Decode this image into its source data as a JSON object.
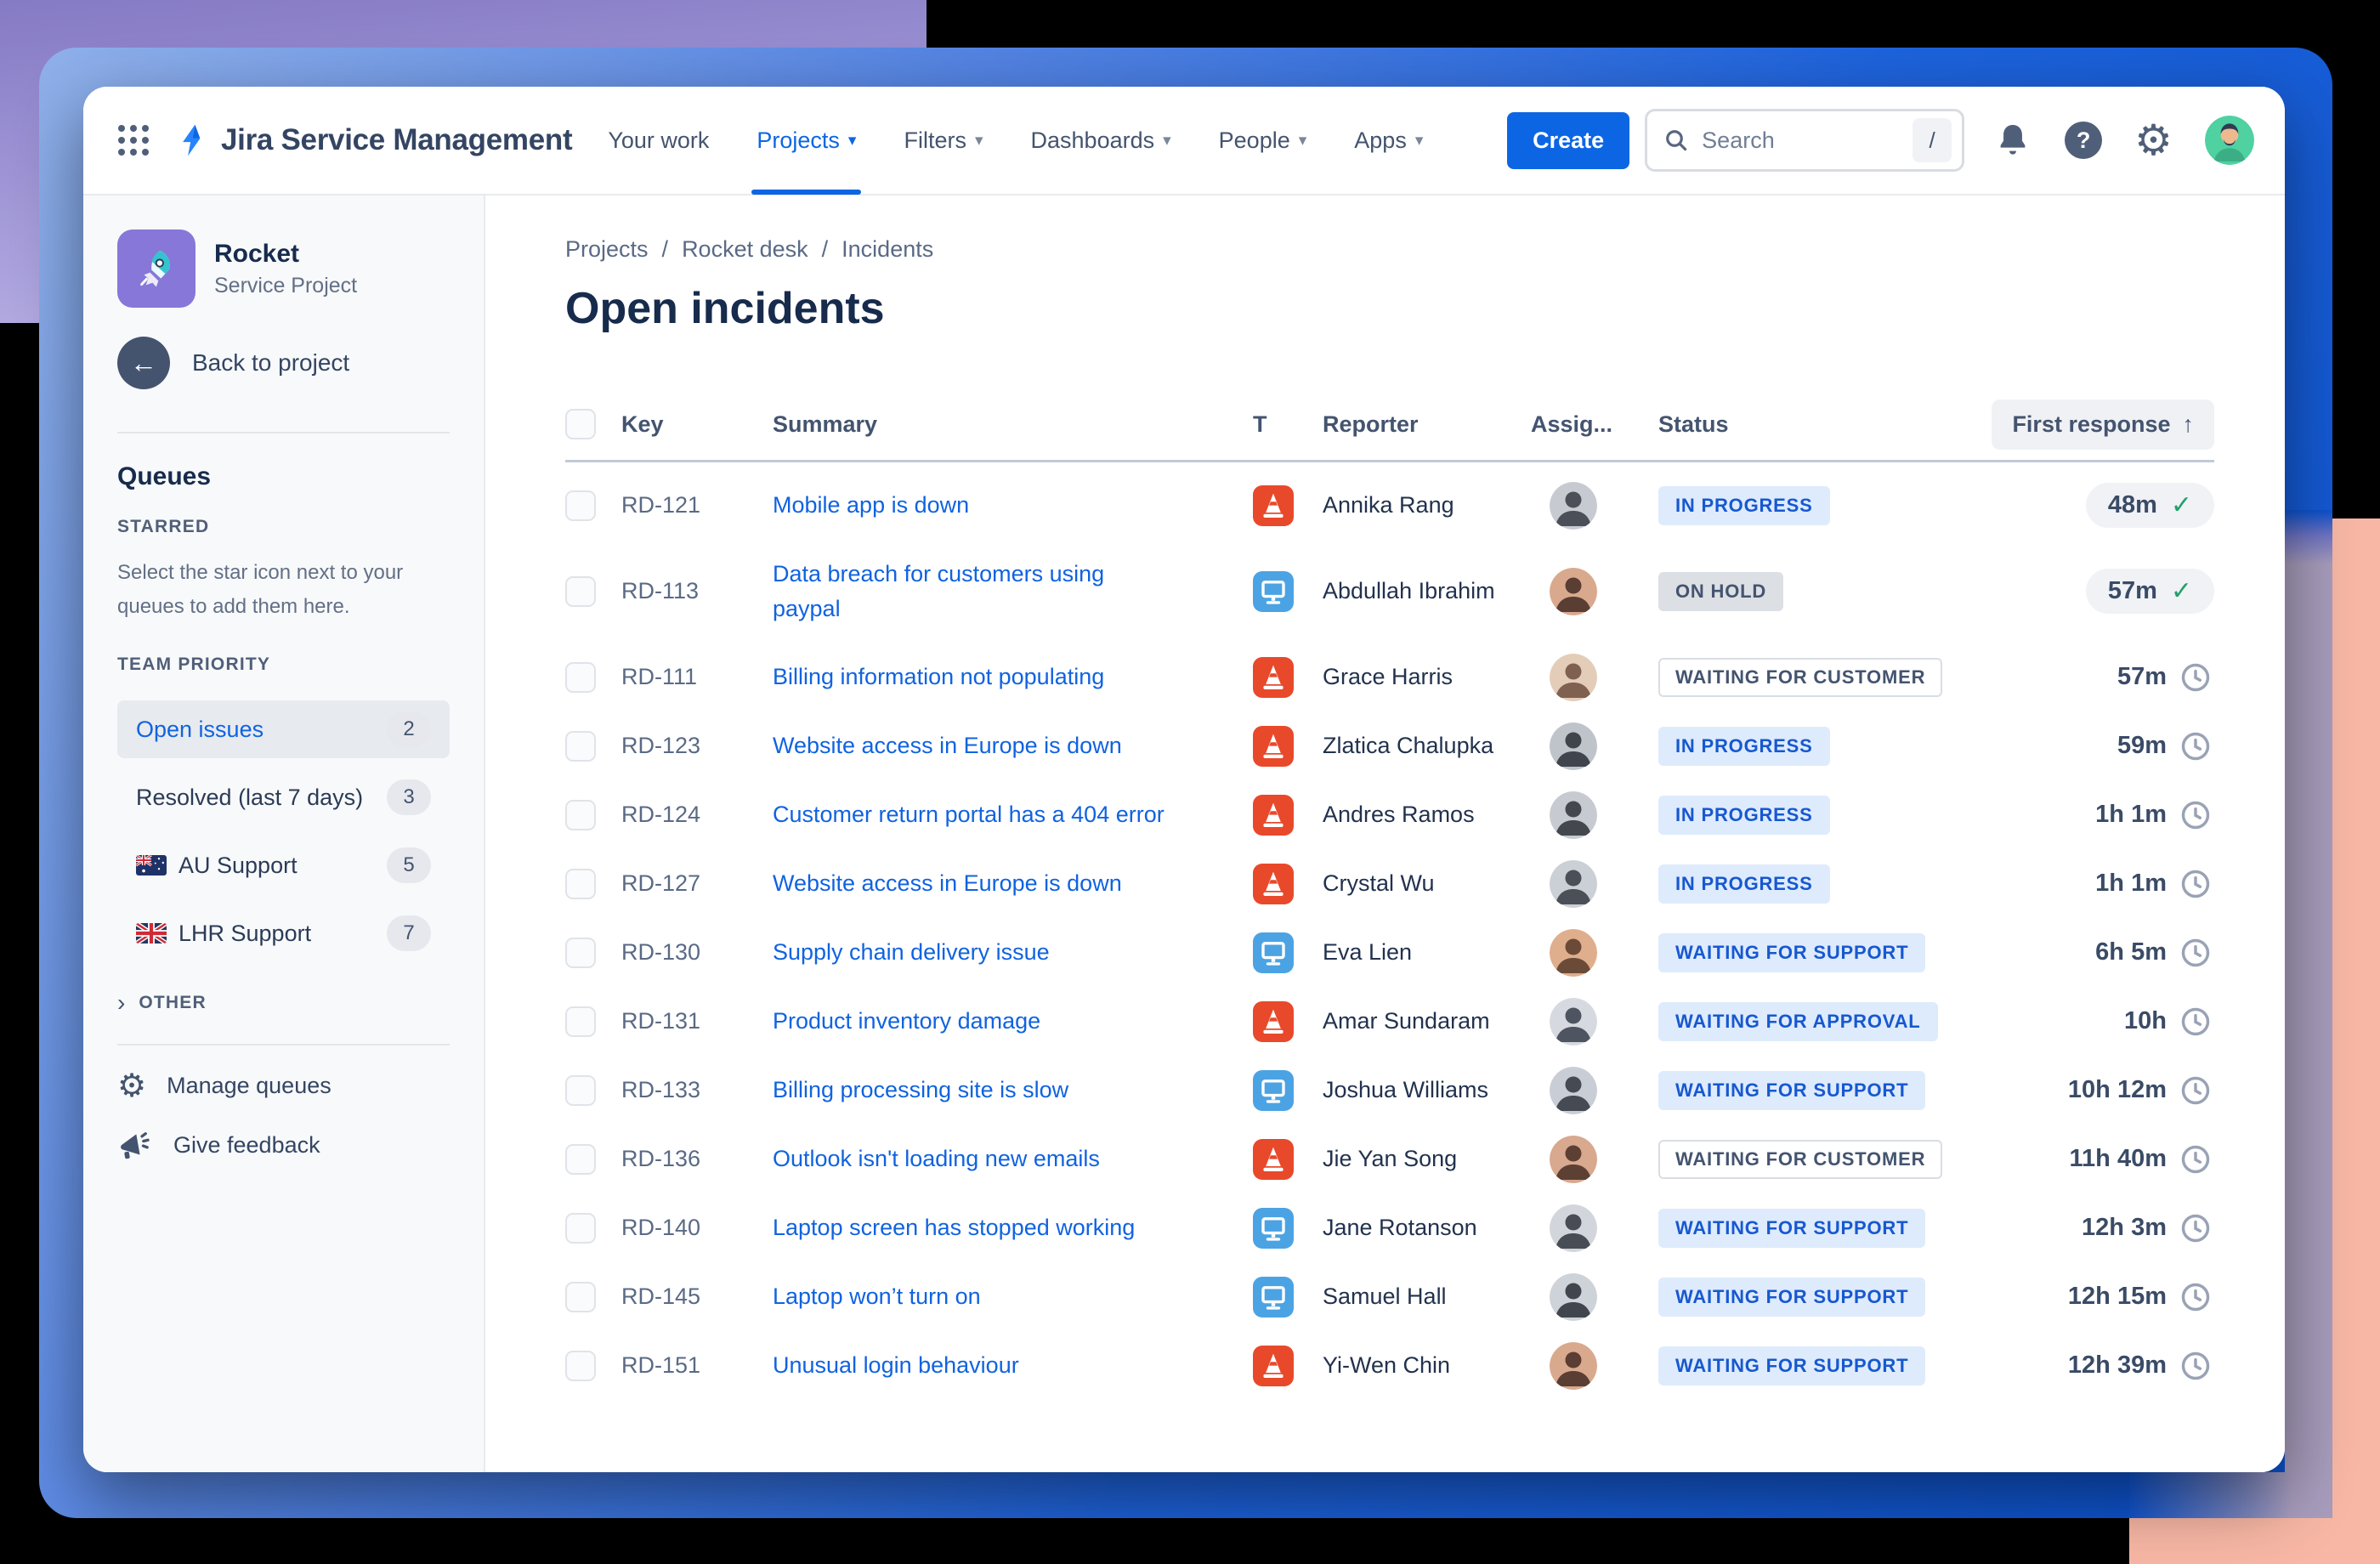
{
  "colors": {
    "accent_blue": "#0C66E4",
    "frame_blue": "#1159D6",
    "background_purple": "#9F95D6",
    "background_salmon": "#F8B7A5",
    "link_blue": "#1063E0",
    "status_blue_bg": "#DEEBFC",
    "status_blue_text": "#1758D0",
    "success_green": "#22A06B",
    "incident_orange": "#E8492A",
    "service_request_blue": "#4BA3E3"
  },
  "topbar": {
    "product": "Jira Service Management",
    "nav": [
      {
        "label": "Your work",
        "caret": false
      },
      {
        "label": "Projects",
        "caret": true,
        "active": true
      },
      {
        "label": "Filters",
        "caret": true
      },
      {
        "label": "Dashboards",
        "caret": true
      },
      {
        "label": "People",
        "caret": true
      },
      {
        "label": "Apps",
        "caret": true
      }
    ],
    "create_label": "Create",
    "search_placeholder": "Search",
    "search_shortcut": "/"
  },
  "sidebar": {
    "project_name": "Rocket",
    "project_type": "Service Project",
    "back_label": "Back to project",
    "queues_title": "Queues",
    "starred_title": "STARRED",
    "starred_hint": "Select the star icon next to your queues to add them here.",
    "team_title": "TEAM PRIORITY",
    "queues": [
      {
        "label": "Open issues",
        "count": "2",
        "active": true
      },
      {
        "label": "Resolved (last 7 days)",
        "count": "3"
      },
      {
        "label": "AU Support",
        "count": "5",
        "flag": "au"
      },
      {
        "label": "LHR Support",
        "count": "7",
        "flag": "gb"
      }
    ],
    "other_label": "OTHER",
    "manage_label": "Manage queues",
    "feedback_label": "Give feedback"
  },
  "main": {
    "breadcrumb": [
      "Projects",
      "Rocket desk",
      "Incidents"
    ],
    "title": "Open incidents",
    "table": {
      "headers": {
        "key": "Key",
        "summary": "Summary",
        "type": "T",
        "reporter": "Reporter",
        "assignee": "Assig...",
        "status": "Status",
        "response": "First response"
      },
      "sort_arrow": "↑",
      "rows": [
        {
          "key": "RD-121",
          "summary": "Mobile app is down",
          "type": "incident",
          "reporter": "Annika Rang",
          "status": "IN PROGRESS",
          "status_variant": "blue",
          "response": "48m",
          "response_met": true
        },
        {
          "key": "RD-113",
          "summary": "Data breach for customers using paypal",
          "type": "service-request",
          "reporter": "Abdullah Ibrahim",
          "status": "ON HOLD",
          "status_variant": "gray",
          "response": "57m",
          "response_met": true,
          "two_line": true
        },
        {
          "key": "RD-111",
          "summary": "Billing information not populating",
          "type": "incident",
          "reporter": "Grace Harris",
          "status": "WAITING FOR CUSTOMER",
          "status_variant": "outline",
          "response": "57m",
          "response_met": false
        },
        {
          "key": "RD-123",
          "summary": "Website access in Europe is down",
          "type": "incident",
          "reporter": "Zlatica Chalupka",
          "status": "IN PROGRESS",
          "status_variant": "blue",
          "response": "59m",
          "response_met": false
        },
        {
          "key": "RD-124",
          "summary": "Customer return portal has a 404 error",
          "type": "incident",
          "reporter": "Andres Ramos",
          "status": "IN PROGRESS",
          "status_variant": "blue",
          "response": "1h 1m",
          "response_met": false
        },
        {
          "key": "RD-127",
          "summary": "Website access in Europe is down",
          "type": "incident",
          "reporter": "Crystal Wu",
          "status": "IN PROGRESS",
          "status_variant": "blue",
          "response": "1h 1m",
          "response_met": false
        },
        {
          "key": "RD-130",
          "summary": "Supply chain delivery issue",
          "type": "service-request",
          "reporter": "Eva Lien",
          "status": "WAITING FOR SUPPORT",
          "status_variant": "blue",
          "response": "6h 5m",
          "response_met": false
        },
        {
          "key": "RD-131",
          "summary": "Product inventory damage",
          "type": "incident",
          "reporter": "Amar Sundaram",
          "status": "WAITING FOR APPROVAL",
          "status_variant": "blue",
          "response": "10h",
          "response_met": false
        },
        {
          "key": "RD-133",
          "summary": "Billing processing site is slow",
          "type": "service-request",
          "reporter": "Joshua Williams",
          "status": "WAITING FOR SUPPORT",
          "status_variant": "blue",
          "response": "10h 12m",
          "response_met": false
        },
        {
          "key": "RD-136",
          "summary": "Outlook isn't loading new emails",
          "type": "incident",
          "reporter": "Jie Yan Song",
          "status": "WAITING FOR CUSTOMER",
          "status_variant": "outline",
          "response": "11h 40m",
          "response_met": false
        },
        {
          "key": "RD-140",
          "summary": "Laptop screen has stopped working",
          "type": "service-request",
          "reporter": "Jane Rotanson",
          "status": "WAITING FOR SUPPORT",
          "status_variant": "blue",
          "response": "12h 3m",
          "response_met": false
        },
        {
          "key": "RD-145",
          "summary": "Laptop won’t turn on",
          "type": "service-request",
          "reporter": "Samuel Hall",
          "status": "WAITING FOR SUPPORT",
          "status_variant": "blue",
          "response": "12h 15m",
          "response_met": false
        },
        {
          "key": "RD-151",
          "summary": "Unusual login behaviour",
          "type": "incident",
          "reporter": "Yi-Wen Chin",
          "status": "WAITING FOR SUPPORT",
          "status_variant": "blue",
          "response": "12h 39m",
          "response_met": false
        }
      ]
    }
  }
}
